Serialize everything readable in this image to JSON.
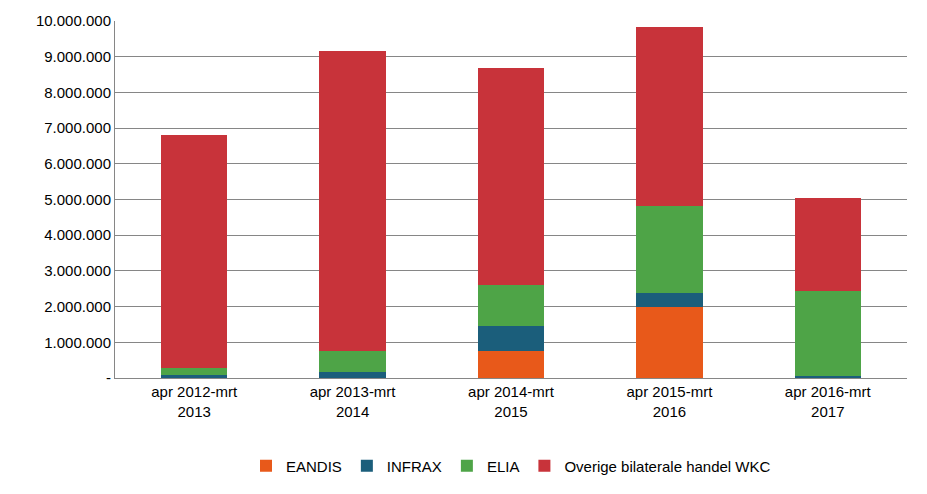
{
  "chart_data": {
    "type": "bar",
    "stacked": true,
    "grid": true,
    "legend": "bottom",
    "categories": [
      "apr 2012-mrt 2013",
      "apr 2013-mrt 2014",
      "apr 2014-mrt 2015",
      "apr 2015-mrt 2016",
      "apr 2016-mrt 2017"
    ],
    "series": [
      {
        "name": "EANDIS",
        "color": "#E8591A",
        "values": [
          0,
          0,
          760000,
          2000000,
          0
        ]
      },
      {
        "name": "INFRAX",
        "color": "#1B5E7B",
        "values": [
          80000,
          170000,
          700000,
          380000,
          50000
        ]
      },
      {
        "name": "ELIA",
        "color": "#4EA447",
        "values": [
          200000,
          580000,
          1140000,
          2440000,
          2400000
        ]
      },
      {
        "name": "Overige bilaterale handel WKC",
        "color": "#C8333A",
        "values": [
          6540000,
          8400000,
          6080000,
          5010000,
          2580000
        ]
      }
    ],
    "ylim": [
      0,
      10000000
    ],
    "yticks": [
      {
        "value": 0,
        "label": "-"
      },
      {
        "value": 1000000,
        "label": "1.000.000"
      },
      {
        "value": 2000000,
        "label": "2.000.000"
      },
      {
        "value": 3000000,
        "label": "3.000.000"
      },
      {
        "value": 4000000,
        "label": "4.000.000"
      },
      {
        "value": 5000000,
        "label": "5.000.000"
      },
      {
        "value": 6000000,
        "label": "6.000.000"
      },
      {
        "value": 7000000,
        "label": "7.000.000"
      },
      {
        "value": 8000000,
        "label": "8.000.000"
      },
      {
        "value": 9000000,
        "label": "9.000.000"
      },
      {
        "value": 10000000,
        "label": "10.000.000"
      }
    ]
  }
}
